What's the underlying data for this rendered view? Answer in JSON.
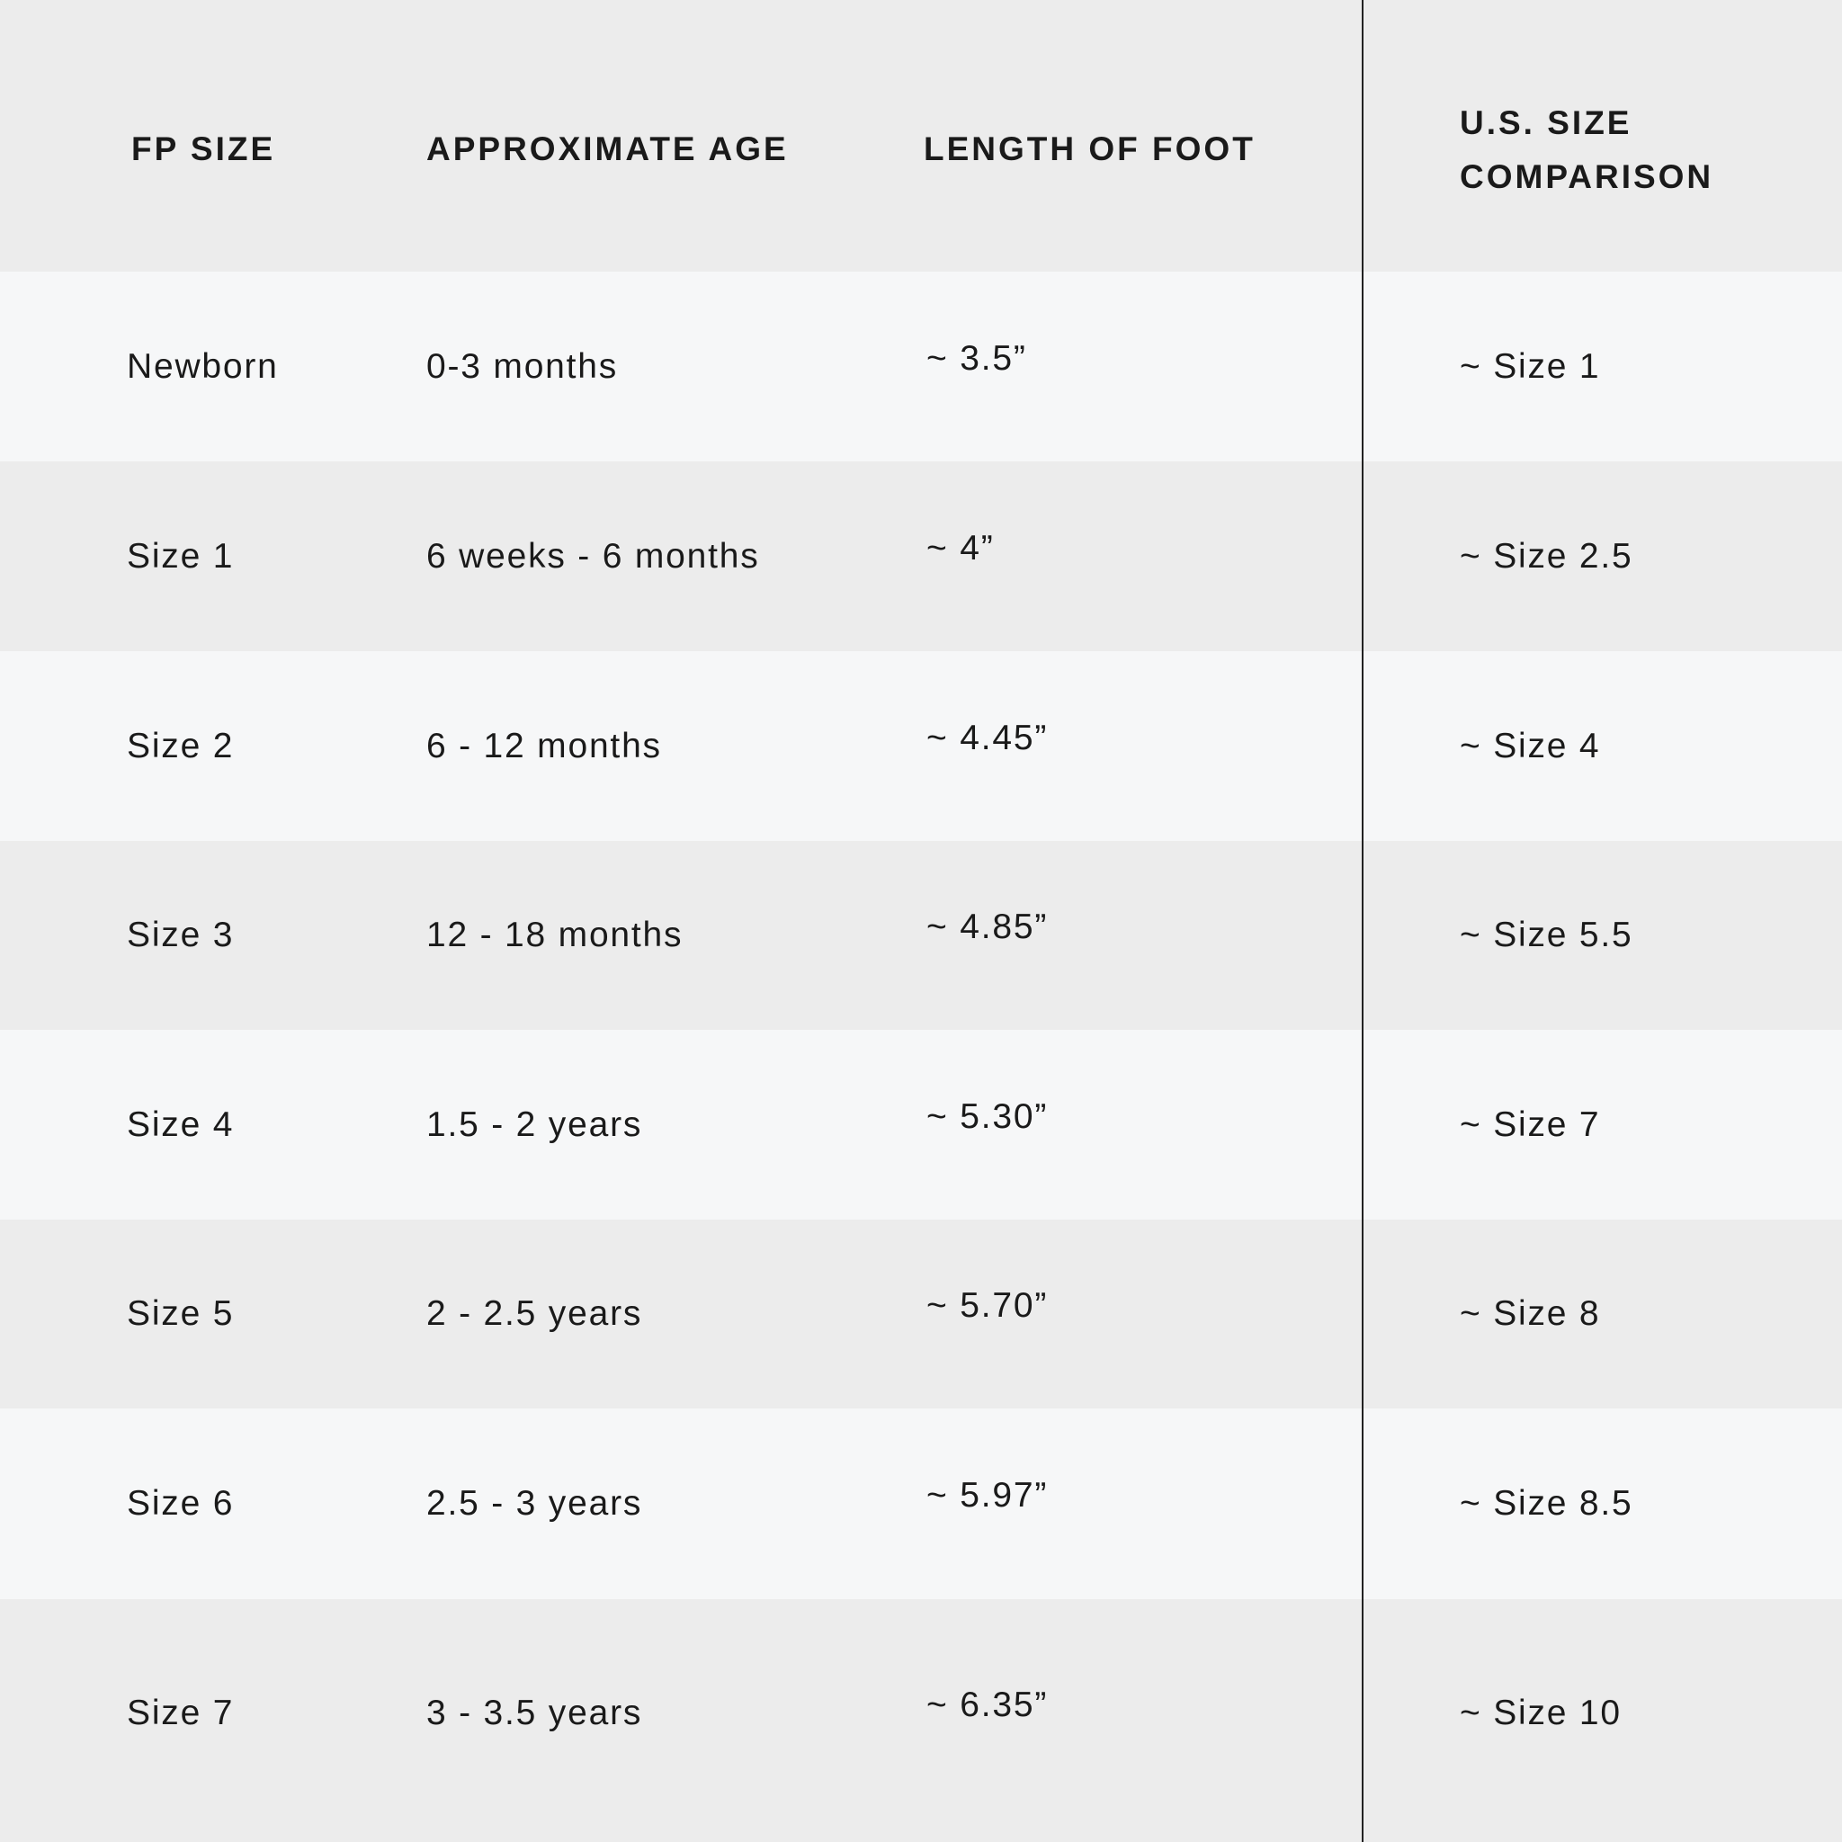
{
  "headers": [
    "FP SIZE",
    "APPROXIMATE AGE",
    "LENGTH OF FOOT",
    "U.S. SIZE",
    "COMPARISON"
  ],
  "rows": [
    [
      "Newborn",
      "0-3 months",
      "~ 3.5”",
      "~ Size 1"
    ],
    [
      "Size 1",
      "6 weeks - 6 months",
      "~ 4”",
      "~ Size 2.5"
    ],
    [
      "Size 2",
      "6 - 12 months",
      "~ 4.45”",
      "~ Size 4"
    ],
    [
      "Size 3",
      "12 - 18 months",
      "~ 4.85”",
      "~ Size 5.5"
    ],
    [
      "Size 4",
      "1.5 - 2 years",
      "~ 5.30”",
      "~ Size 7"
    ],
    [
      "Size 5",
      "2 - 2.5 years",
      "~ 5.70”",
      "~ Size 8"
    ],
    [
      "Size 6",
      "2.5 - 3 years",
      "~ 5.97”",
      "~ Size 8.5"
    ],
    [
      "Size 7",
      "3 - 3.5 years",
      "~ 6.35”",
      "~ Size 10"
    ]
  ],
  "colors": {
    "header_bg": "#ececec",
    "row_light": "#f6f7f8",
    "row_dark": "#ececec",
    "divider": "#222222"
  }
}
